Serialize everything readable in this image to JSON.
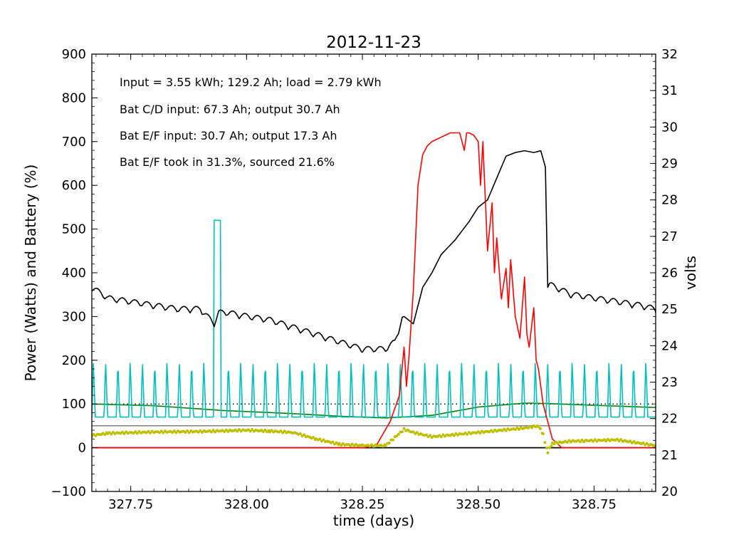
{
  "chart_data": {
    "type": "line",
    "title": "2012-11-23",
    "xlabel": "time (days)",
    "ylabel": "Power (Watts) and Battery (%)",
    "y2label": "volts",
    "xlim": [
      327.666,
      328.883
    ],
    "ylim": [
      -100,
      900
    ],
    "y2lim": [
      20,
      32
    ],
    "x_ticks": [
      "327.75",
      "328.00",
      "328.25",
      "328.50",
      "328.75"
    ],
    "x_tick_values": [
      327.75,
      328.0,
      328.25,
      328.5,
      328.75
    ],
    "y_ticks": [
      "−100",
      "0",
      "100",
      "200",
      "300",
      "400",
      "500",
      "600",
      "700",
      "800",
      "900"
    ],
    "y_tick_values": [
      -100,
      0,
      100,
      200,
      300,
      400,
      500,
      600,
      700,
      800,
      900
    ],
    "y2_ticks": [
      "20",
      "21",
      "22",
      "23",
      "24",
      "25",
      "26",
      "27",
      "28",
      "29",
      "30",
      "31",
      "32"
    ],
    "y2_tick_values": [
      20,
      21,
      22,
      23,
      24,
      25,
      26,
      27,
      28,
      29,
      30,
      31,
      32
    ],
    "annotations": [
      "Input = 3.55 kWh; 129.2 Ah; load = 2.79 kWh",
      "Bat C/D input: 67.3 Ah; output 30.7 Ah",
      "Bat E/F input: 30.7 Ah; output 17.3 Ah",
      "Bat E/F took in 31.3%, sourced 21.6%"
    ],
    "reference_lines": [
      {
        "axis": "y",
        "value": 0,
        "style": "solid",
        "color": "#000000"
      },
      {
        "axis": "y",
        "value": 100,
        "style": "dotted",
        "color": "#000000"
      },
      {
        "axis": "y",
        "value": 50,
        "style": "solid-thin",
        "color": "#000000"
      }
    ],
    "series": [
      {
        "color": "#ff0000",
        "axis": "left",
        "x": [
          327.666,
          328.25,
          328.28,
          328.31,
          328.33,
          328.34,
          328.345,
          328.35,
          328.36,
          328.37,
          328.38,
          328.39,
          328.4,
          328.42,
          328.44,
          328.46,
          328.47,
          328.475,
          328.48,
          328.49,
          328.5,
          328.505,
          328.51,
          328.52,
          328.53,
          328.535,
          328.54,
          328.55,
          328.56,
          328.565,
          328.57,
          328.58,
          328.59,
          328.6,
          328.605,
          328.61,
          328.62,
          328.625,
          328.63,
          328.64,
          328.66,
          328.68,
          328.883
        ],
        "values": [
          0,
          0,
          5,
          60,
          120,
          230,
          140,
          200,
          360,
          600,
          670,
          690,
          700,
          710,
          720,
          720,
          680,
          720,
          720,
          715,
          700,
          600,
          700,
          450,
          560,
          400,
          480,
          340,
          410,
          320,
          430,
          300,
          250,
          390,
          260,
          230,
          320,
          200,
          180,
          100,
          20,
          0,
          0
        ]
      },
      {
        "color": "#000000",
        "axis": "right",
        "x": [
          327.666,
          327.7,
          327.75,
          327.8,
          327.85,
          327.9,
          327.93,
          327.94,
          327.96,
          328.0,
          328.05,
          328.1,
          328.15,
          328.2,
          328.25,
          328.3,
          328.32,
          328.34,
          328.36,
          328.38,
          328.4,
          328.42,
          328.45,
          328.48,
          328.5,
          328.52,
          328.54,
          328.56,
          328.58,
          328.6,
          328.62,
          328.635,
          328.645,
          328.65,
          328.7,
          328.75,
          328.8,
          328.85,
          328.883
        ],
        "values": [
          25.5,
          25.2,
          25.1,
          25.0,
          24.9,
          24.9,
          24.5,
          24.8,
          24.8,
          24.7,
          24.6,
          24.4,
          24.2,
          24.0,
          23.8,
          23.8,
          24.0,
          24.8,
          24.6,
          25.6,
          26.0,
          26.5,
          26.9,
          27.4,
          27.8,
          28.0,
          28.6,
          29.2,
          29.3,
          29.35,
          29.3,
          29.35,
          28.9,
          25.6,
          25.3,
          25.2,
          25.1,
          25.0,
          24.9
        ]
      },
      {
        "color": "#00bfbf",
        "axis": "left",
        "x": [
          327.666,
          327.93,
          327.935,
          327.94,
          327.945,
          328.883
        ],
        "values": [
          75,
          75,
          520,
          520,
          80,
          75
        ],
        "oscillation": {
          "low": 70,
          "high": 200,
          "period_days": 0.0265
        }
      },
      {
        "color": "#008000",
        "axis": "left",
        "x": [
          327.666,
          327.8,
          327.95,
          328.1,
          328.2,
          328.3,
          328.4,
          328.5,
          328.6,
          328.65,
          328.75,
          328.883
        ],
        "values": [
          100,
          96,
          85,
          78,
          72,
          68,
          74,
          93,
          102,
          101,
          97,
          92
        ]
      },
      {
        "color": "#bfbf00",
        "axis": "left",
        "marker": "point",
        "x": [
          327.666,
          327.7,
          327.8,
          327.9,
          328.0,
          328.05,
          328.1,
          328.15,
          328.2,
          328.25,
          328.3,
          328.34,
          328.36,
          328.4,
          328.5,
          328.6,
          328.63,
          328.64,
          328.65,
          328.66,
          328.7,
          328.8,
          328.883
        ],
        "values": [
          28,
          33,
          36,
          37,
          40,
          38,
          35,
          20,
          8,
          5,
          5,
          42,
          35,
          25,
          35,
          45,
          50,
          30,
          -10,
          10,
          15,
          18,
          5
        ]
      }
    ]
  }
}
